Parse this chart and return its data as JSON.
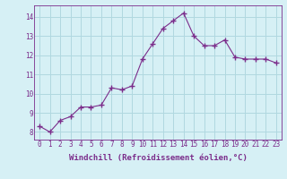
{
  "x": [
    0,
    1,
    2,
    3,
    4,
    5,
    6,
    7,
    8,
    9,
    10,
    11,
    12,
    13,
    14,
    15,
    16,
    17,
    18,
    19,
    20,
    21,
    22,
    23
  ],
  "y": [
    8.3,
    8.0,
    8.6,
    8.8,
    9.3,
    9.3,
    9.4,
    10.3,
    10.2,
    10.4,
    11.8,
    12.6,
    13.4,
    13.8,
    14.2,
    13.0,
    12.5,
    12.5,
    12.8,
    11.9,
    11.8,
    11.8,
    11.8,
    11.6
  ],
  "line_color": "#7b2d8b",
  "marker": "+",
  "marker_size": 4,
  "background_color": "#d6f0f5",
  "grid_color": "#b0d8e0",
  "ylabel_ticks": [
    8,
    9,
    10,
    11,
    12,
    13,
    14
  ],
  "xlabel": "Windchill (Refroidissement éolien,°C)",
  "ylim": [
    7.6,
    14.6
  ],
  "xlim": [
    -0.5,
    23.5
  ],
  "tick_fontsize": 5.5,
  "xlabel_fontsize": 6.5
}
